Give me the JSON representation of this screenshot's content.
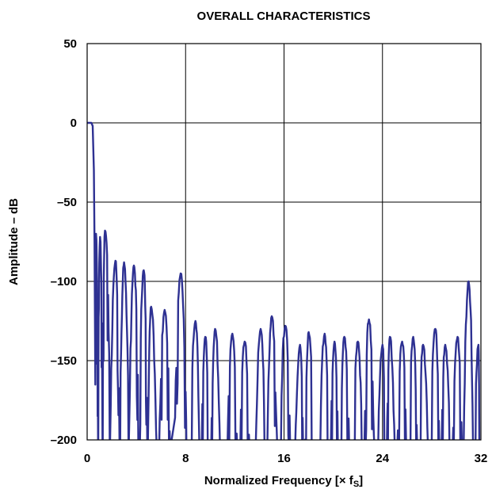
{
  "chart_data": {
    "type": "line",
    "title": "OVERALL CHARACTERISTICS",
    "xlabel": "Normalized Frequency [× f",
    "xlabel_sub": "S",
    "xlabel_end": "]",
    "ylabel": "Amplitude – dB",
    "xlim": [
      0,
      32
    ],
    "ylim": [
      -200,
      50
    ],
    "grid": true,
    "x_ticks": [
      0,
      8,
      16,
      24,
      32
    ],
    "x_tick_labels": [
      "0",
      "8",
      "16",
      "24",
      "32"
    ],
    "y_ticks": [
      50,
      0,
      -50,
      -100,
      -150,
      -200
    ],
    "y_tick_labels": [
      "50",
      "0",
      "–50",
      "–100",
      "–150",
      "–200"
    ],
    "line_color": "#2e3192",
    "series": [
      {
        "passband": [
          [
            0,
            0
          ],
          [
            0.35,
            0
          ],
          [
            0.45,
            -2
          ],
          [
            0.55,
            -30
          ],
          [
            0.6,
            -75
          ]
        ],
        "lobes": [
          [
            0.72,
            -70
          ],
          [
            1.05,
            -72
          ],
          [
            1.45,
            -68
          ],
          [
            2.3,
            -87
          ],
          [
            3.0,
            -88
          ],
          [
            3.8,
            -90
          ],
          [
            4.6,
            -93
          ],
          [
            5.2,
            -116
          ],
          [
            6.3,
            -118
          ],
          [
            7.6,
            -95
          ],
          [
            8.8,
            -125
          ],
          [
            9.6,
            -135
          ],
          [
            10.4,
            -130
          ],
          [
            11.8,
            -133
          ],
          [
            12.8,
            -138
          ],
          [
            14.1,
            -130
          ],
          [
            15.0,
            -122
          ],
          [
            16.1,
            -128
          ],
          [
            17.3,
            -140
          ],
          [
            18.0,
            -132
          ],
          [
            19.3,
            -133
          ],
          [
            20.1,
            -138
          ],
          [
            20.9,
            -135
          ],
          [
            22.0,
            -138
          ],
          [
            22.9,
            -124
          ],
          [
            24.0,
            -140
          ],
          [
            24.6,
            -135
          ],
          [
            25.6,
            -138
          ],
          [
            26.5,
            -135
          ],
          [
            27.3,
            -140
          ],
          [
            28.3,
            -130
          ],
          [
            29.1,
            -140
          ],
          [
            30.1,
            -135
          ],
          [
            31.0,
            -100
          ],
          [
            31.8,
            -140
          ]
        ]
      }
    ]
  }
}
